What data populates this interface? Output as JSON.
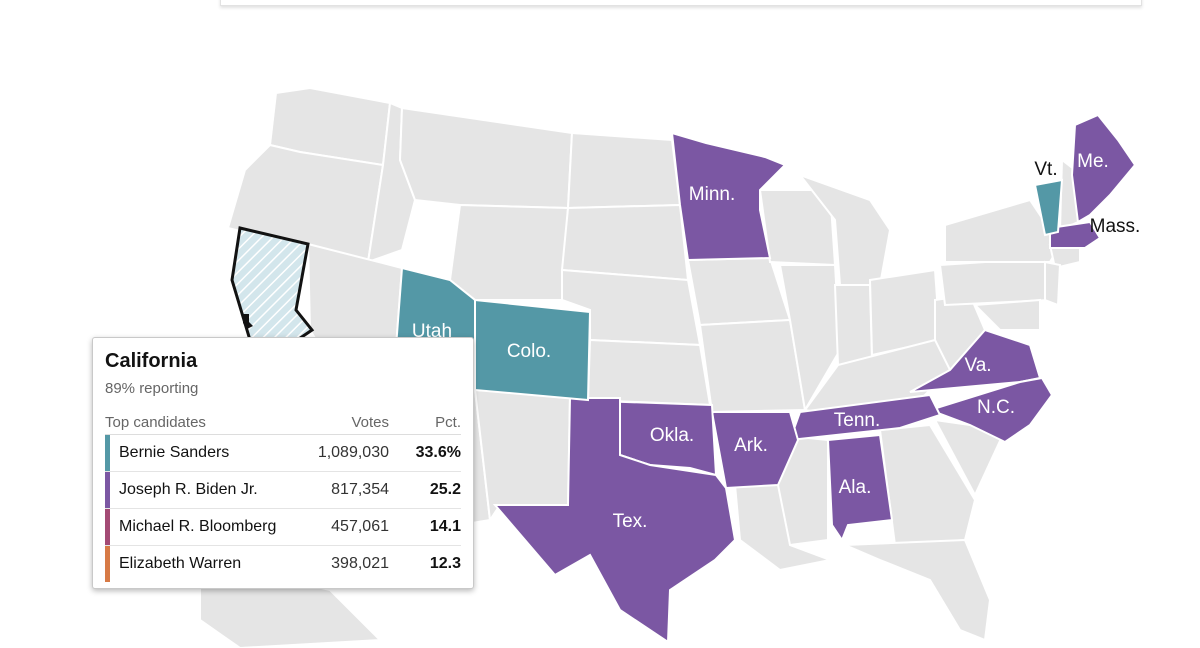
{
  "colors": {
    "sanders": "#5498a6",
    "biden": "#7b57a3",
    "bloomberg": "#a34a74",
    "warren": "#d77a46",
    "no_result": "#e5e5e5",
    "border": "#ffffff"
  },
  "states": [
    {
      "label": "Minn.",
      "winner": "biden"
    },
    {
      "label": "Me.",
      "winner": "biden"
    },
    {
      "label": "Vt.",
      "winner": "sanders"
    },
    {
      "label": "Mass.",
      "winner": "biden"
    },
    {
      "label": "Utah",
      "winner": "sanders"
    },
    {
      "label": "Colo.",
      "winner": "sanders"
    },
    {
      "label": "Va.",
      "winner": "biden"
    },
    {
      "label": "N.C.",
      "winner": "biden"
    },
    {
      "label": "Okla.",
      "winner": "biden"
    },
    {
      "label": "Ark.",
      "winner": "biden"
    },
    {
      "label": "Tenn.",
      "winner": "biden"
    },
    {
      "label": "Ala.",
      "winner": "biden"
    },
    {
      "label": "Tex.",
      "winner": "biden"
    }
  ],
  "tooltip": {
    "state": "California",
    "reporting": "89% reporting",
    "header": {
      "name": "Top candidates",
      "votes": "Votes",
      "pct": "Pct."
    },
    "rows": [
      {
        "name": "Bernie Sanders",
        "votes": "1,089,030",
        "pct": "33.6%",
        "color": "#5498a6"
      },
      {
        "name": "Joseph R. Biden Jr.",
        "votes": "817,354",
        "pct": "25.2",
        "color": "#7b57a3"
      },
      {
        "name": "Michael R. Bloomberg",
        "votes": "457,061",
        "pct": "14.1",
        "color": "#a34a74"
      },
      {
        "name": "Elizabeth Warren",
        "votes": "398,021",
        "pct": "12.3",
        "color": "#d77a46"
      }
    ]
  }
}
